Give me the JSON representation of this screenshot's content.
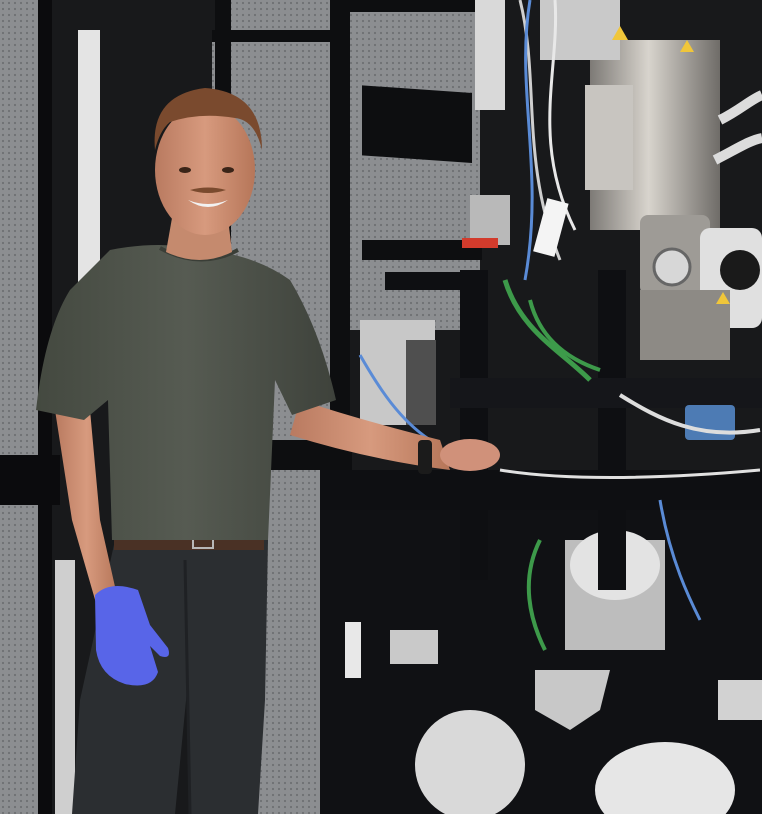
{
  "scene": {
    "colors": {
      "background": "#1a1a1c",
      "acoustic_panel": "#8f9194",
      "panel_frame": "#0d0e10",
      "shirt": "#4d5249",
      "pants": "#2b2e31",
      "belt": "#4a3125",
      "glove": "#5865e8",
      "skin": "#c98d72",
      "hair": "#7a4a2e",
      "microscope_column": "#b5b2ad",
      "microscope_frame": "#101114",
      "cables_blue": "#5a8bd6",
      "cables_green": "#3d9a4a",
      "warning_label": "#f0c63a"
    },
    "icons": {
      "person": "person-figure",
      "microscope": "cryo-em-microscope",
      "glove": "nitrile-glove"
    }
  }
}
